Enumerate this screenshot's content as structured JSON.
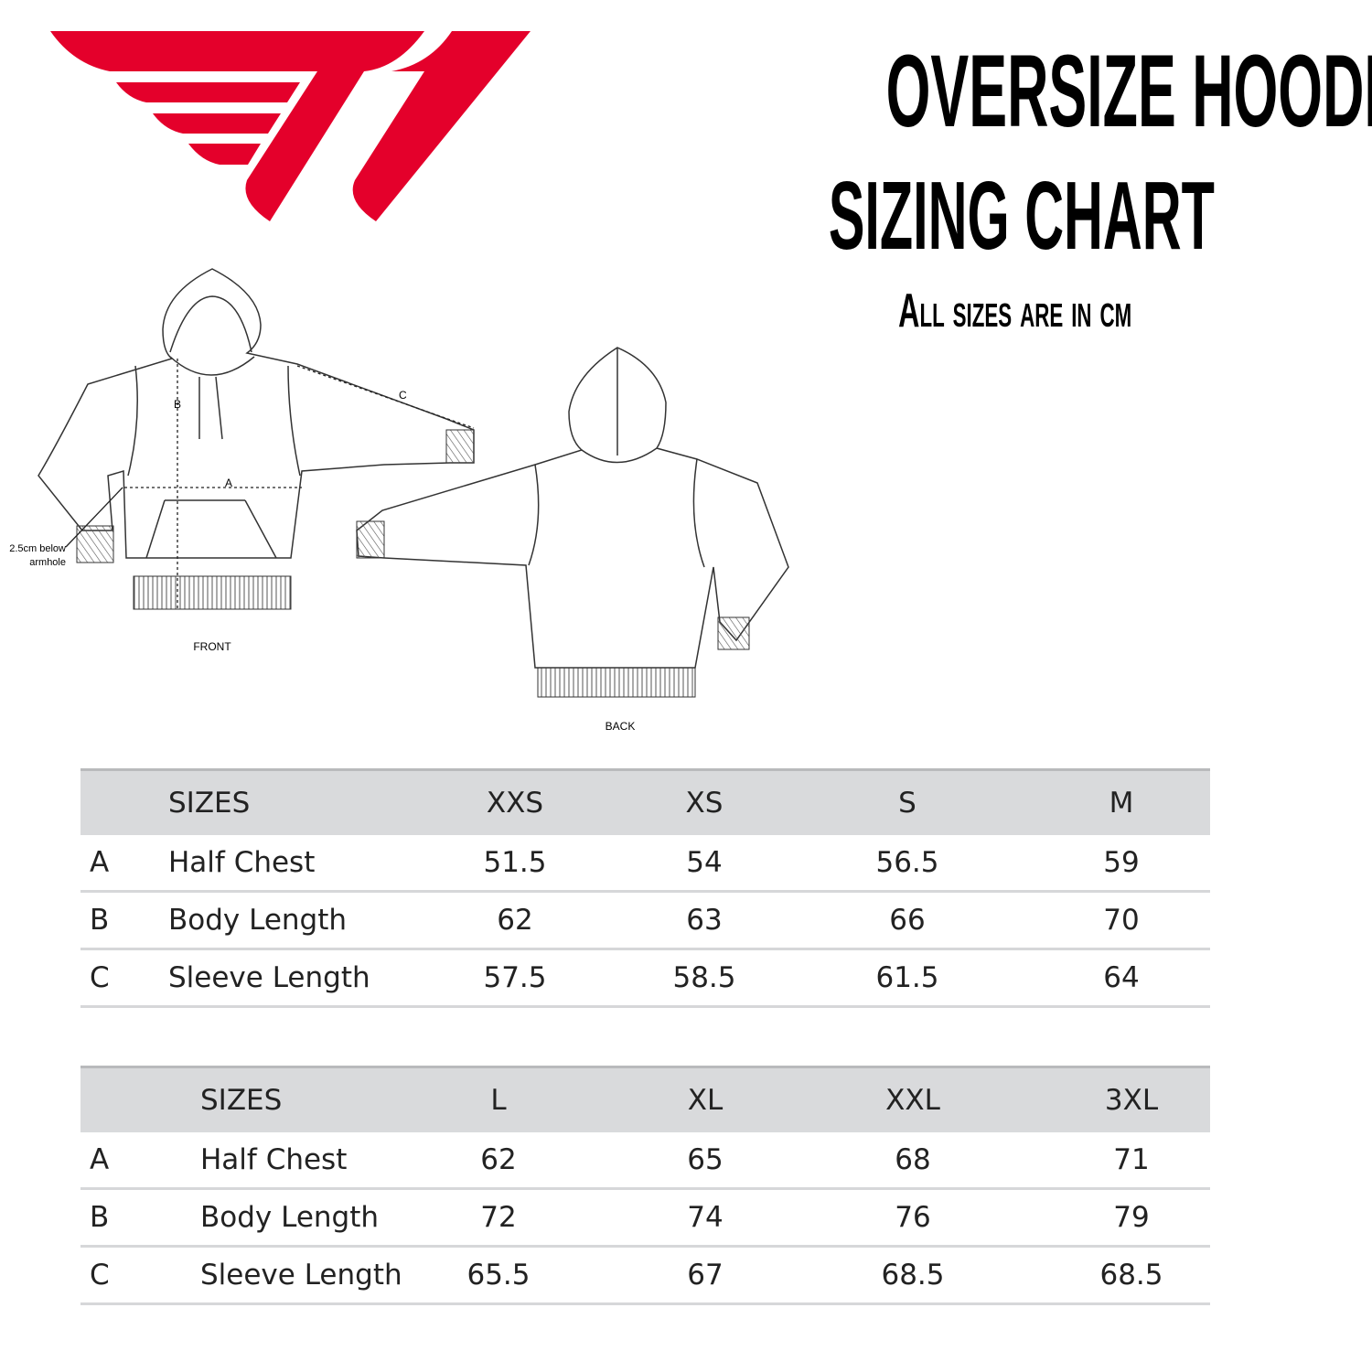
{
  "brand": {
    "logo_text": "T1",
    "color": "#e4002b"
  },
  "header": {
    "title_line1": "OVERSIZE HOODIE",
    "title_line2": "SIZING CHART",
    "subtitle": "All sizes are in cm"
  },
  "diagram": {
    "front_label": "FRONT",
    "back_label": "BACK",
    "measure_a": "A",
    "measure_b": "B",
    "measure_c": "C",
    "note_line1": "2.5cm below",
    "note_line2": "armhole"
  },
  "table1": {
    "header": {
      "letter": "",
      "label": "SIZES",
      "sizes": [
        "XXS",
        "XS",
        "S",
        "M"
      ]
    },
    "rows": [
      {
        "letter": "A",
        "label": "Half Chest",
        "values": [
          "51.5",
          "54",
          "56.5",
          "59"
        ]
      },
      {
        "letter": "B",
        "label": "Body Length",
        "values": [
          "62",
          "63",
          "66",
          "70"
        ]
      },
      {
        "letter": "C",
        "label": "Sleeve Length",
        "values": [
          "57.5",
          "58.5",
          "61.5",
          "64"
        ]
      }
    ]
  },
  "table2": {
    "header": {
      "letter": "",
      "label": "SIZES",
      "sizes": [
        "L",
        "XL",
        "XXL",
        "3XL"
      ]
    },
    "rows": [
      {
        "letter": "A",
        "label": "Half Chest",
        "values": [
          "62",
          "65",
          "68",
          "71"
        ]
      },
      {
        "letter": "B",
        "label": "Body Length",
        "values": [
          "72",
          "74",
          "76",
          "79"
        ]
      },
      {
        "letter": "C",
        "label": "Sleeve Length",
        "values": [
          "65.5",
          "67",
          "68.5",
          "68.5"
        ]
      }
    ]
  }
}
